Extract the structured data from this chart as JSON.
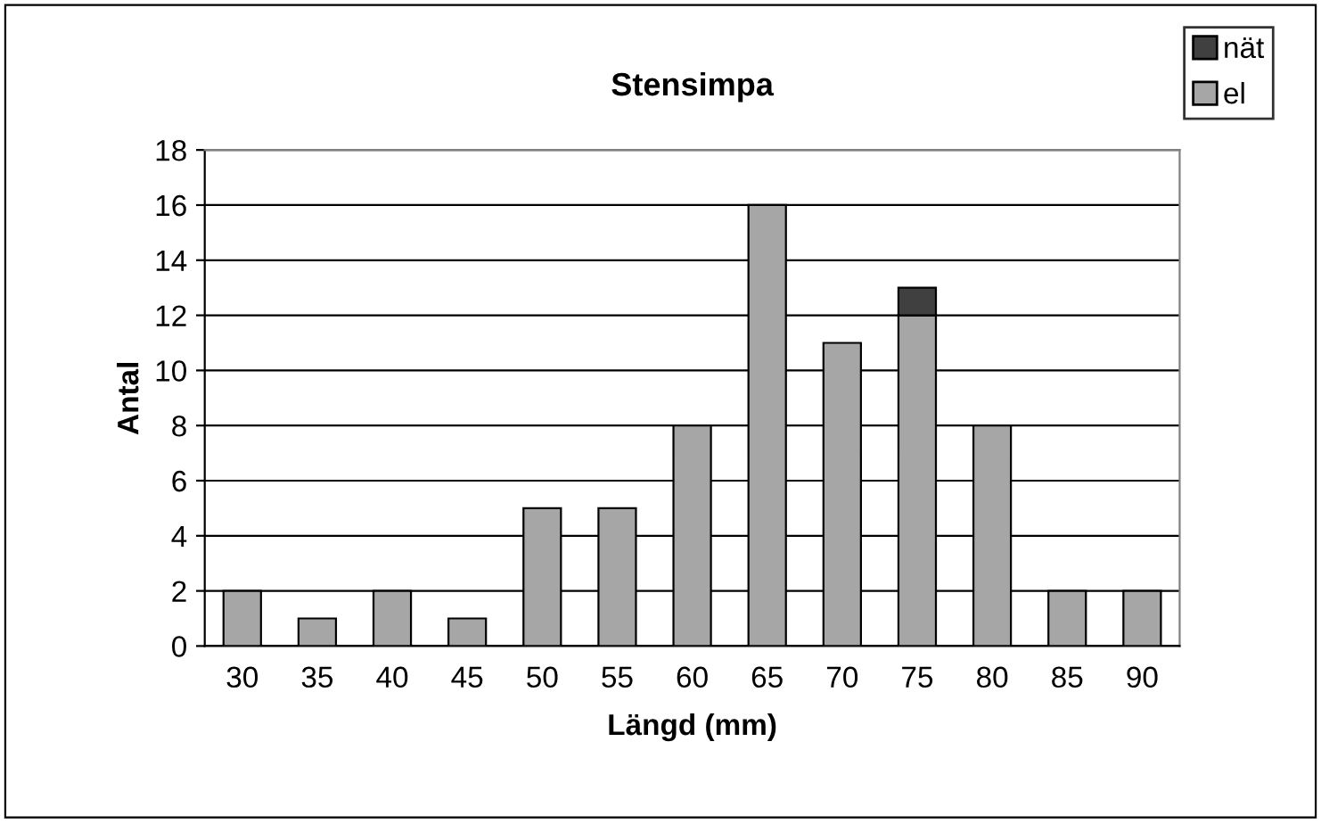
{
  "chart_data": {
    "type": "bar",
    "title": "Stensimpa",
    "xlabel": "Längd (mm)",
    "ylabel": "Antal",
    "stacked": true,
    "categories": [
      "30",
      "35",
      "40",
      "45",
      "50",
      "55",
      "60",
      "65",
      "70",
      "75",
      "80",
      "85",
      "90"
    ],
    "series": [
      {
        "name": "el",
        "color": "#a6a6a6",
        "values": [
          2,
          1,
          2,
          1,
          5,
          5,
          8,
          16,
          11,
          12,
          8,
          2,
          2
        ]
      },
      {
        "name": "nät",
        "color": "#404040",
        "values": [
          null,
          null,
          null,
          null,
          null,
          null,
          null,
          null,
          null,
          1,
          null,
          null,
          null
        ]
      }
    ],
    "ylim": [
      0,
      18
    ],
    "yticks": [
      0,
      2,
      4,
      6,
      8,
      10,
      12,
      14,
      16,
      18
    ],
    "grid": "y",
    "legend": "top right"
  }
}
